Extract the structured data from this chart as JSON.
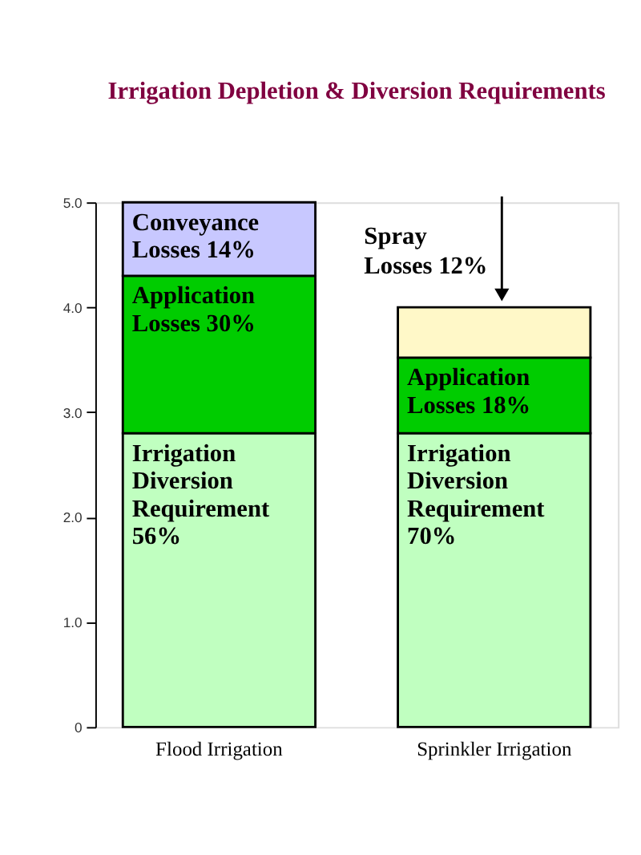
{
  "chart_data": {
    "type": "bar",
    "stacked": true,
    "title": "Irrigation Depletion & Diversion Requirements",
    "categories": [
      "Flood Irrigation",
      "Sprinkler Irrigation"
    ],
    "series": [
      {
        "color": "#c0ffc0",
        "values": [
          2.8,
          2.8
        ]
      },
      {
        "color": "#00cc00",
        "values": [
          1.5,
          0.72
        ]
      },
      {
        "colors": [
          "#c8c8ff",
          "#fff8c8"
        ],
        "values": [
          0.7,
          0.48
        ]
      }
    ],
    "ylim": [
      0,
      5
    ],
    "yticks": [
      {
        "value": 0,
        "label": "0"
      },
      {
        "value": 1,
        "label": "1.0"
      },
      {
        "value": 2,
        "label": "2.0"
      },
      {
        "value": 3,
        "label": "3.0"
      },
      {
        "value": 4,
        "label": "4.0"
      },
      {
        "value": 5,
        "label": "5.0"
      }
    ],
    "grid": false,
    "annotations": [
      {
        "text": "Conveyance\nLosses 14%",
        "x": "Flood Irrigation",
        "y": 5.0
      },
      {
        "text": "Application\nLosses 30%",
        "x": "Flood Irrigation",
        "y": 4.3
      },
      {
        "text": "Irrigation\nDiversion\nRequirement\n\n56%",
        "x": "Flood Irrigation",
        "y": 2.8
      },
      {
        "text": "Spray\nLosses 12%",
        "x": "Sprinkler Irrigation",
        "y": 4.0
      },
      {
        "text": "Application\nLosses 18%",
        "x": "Sprinkler Irrigation",
        "y": 3.52
      },
      {
        "text": "Irrigation\nDiversion\nRequirement\n\n\n70%",
        "x": "Sprinkler Irrigation",
        "y": 2.8
      }
    ]
  }
}
